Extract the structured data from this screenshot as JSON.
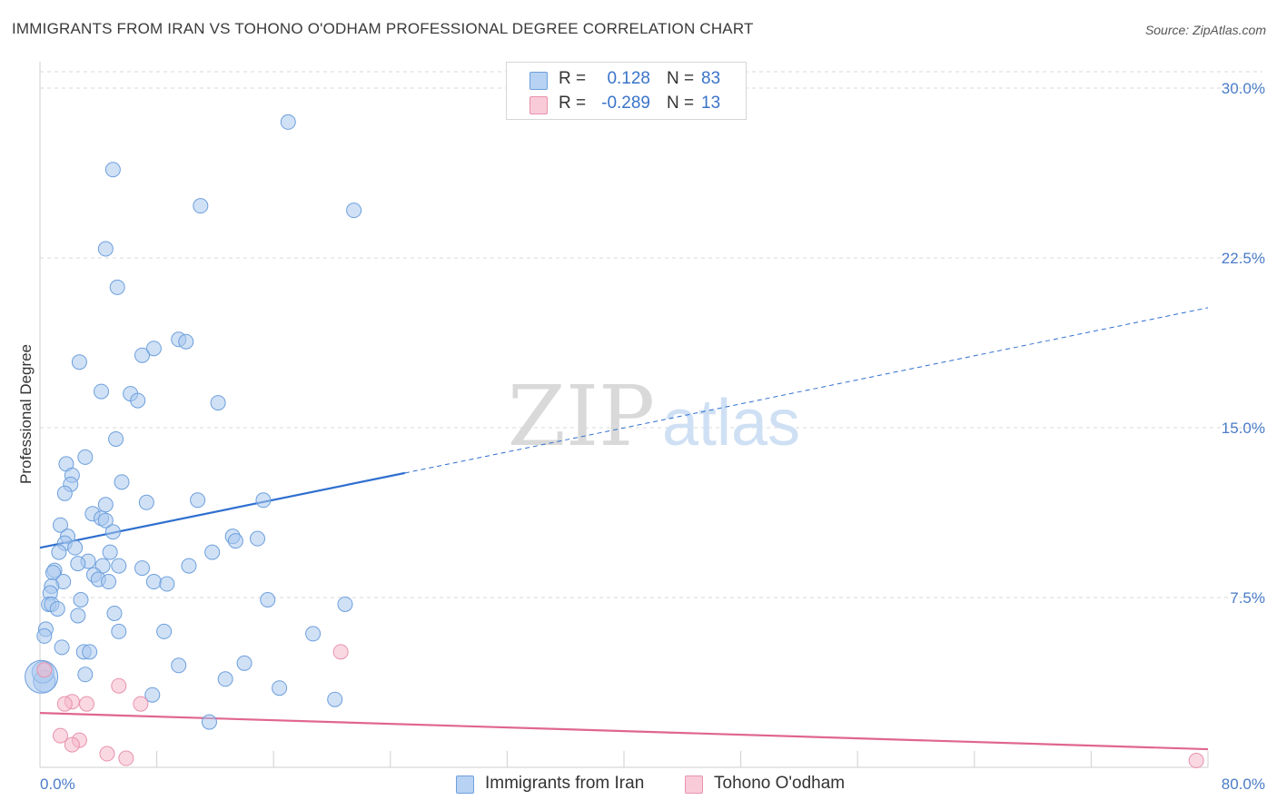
{
  "title": "IMMIGRANTS FROM IRAN VS TOHONO O'ODHAM PROFESSIONAL DEGREE CORRELATION CHART",
  "source": "Source: ZipAtlas.com",
  "watermark": {
    "zip": "ZIP",
    "atlas": "atlas"
  },
  "legend": {
    "series1": {
      "r_label": "R =",
      "r_value": "0.128",
      "n_label": "N =",
      "n_value": "83"
    },
    "series2": {
      "r_label": "R =",
      "r_value": "-0.289",
      "n_label": "N =",
      "n_value": "13"
    }
  },
  "colors": {
    "blue_fill": "#a9c8ef",
    "blue_stroke": "#6d9fdc",
    "blue_line": "#2f6fcf",
    "pink_fill": "#f5b8cb",
    "pink_stroke": "#e892ad",
    "pink_line": "#e0668f",
    "grid": "#d9d9d9",
    "tick_text": "#4a7cc7"
  },
  "chart_data": {
    "type": "scatter",
    "title": "IMMIGRANTS FROM IRAN VS TOHONO O'ODHAM PROFESSIONAL DEGREE CORRELATION CHART",
    "xlabel": "",
    "ylabel": "Professional Degree",
    "xlim": [
      0,
      80
    ],
    "ylim": [
      0,
      30
    ],
    "x_tick_labels": [
      "0.0%",
      "80.0%"
    ],
    "y_ticks": [
      7.5,
      15.0,
      22.5,
      30.0
    ],
    "y_tick_labels": [
      "7.5%",
      "15.0%",
      "22.5%",
      "30.0%"
    ],
    "series": [
      {
        "name": "Immigrants from Iran",
        "color": "#a9c8ef",
        "r": 0.128,
        "n": 83,
        "trend": {
          "x0": 0,
          "y0": 9.7,
          "x1": 25,
          "y1": 13.0,
          "dashed_to_x": 80,
          "dashed_to_y": 20.3
        },
        "points": [
          [
            17.0,
            28.5
          ],
          [
            5.0,
            26.4
          ],
          [
            11.0,
            24.8
          ],
          [
            21.5,
            24.6
          ],
          [
            4.5,
            22.9
          ],
          [
            5.3,
            21.2
          ],
          [
            9.5,
            18.9
          ],
          [
            10.0,
            18.8
          ],
          [
            7.8,
            18.5
          ],
          [
            7.0,
            18.2
          ],
          [
            2.7,
            17.9
          ],
          [
            4.2,
            16.6
          ],
          [
            6.2,
            16.5
          ],
          [
            6.7,
            16.2
          ],
          [
            12.2,
            16.1
          ],
          [
            5.2,
            14.5
          ],
          [
            3.1,
            13.7
          ],
          [
            1.8,
            13.4
          ],
          [
            2.2,
            12.9
          ],
          [
            2.1,
            12.5
          ],
          [
            5.6,
            12.6
          ],
          [
            1.7,
            12.1
          ],
          [
            10.8,
            11.8
          ],
          [
            15.3,
            11.8
          ],
          [
            7.3,
            11.7
          ],
          [
            4.5,
            11.6
          ],
          [
            3.6,
            11.2
          ],
          [
            4.2,
            11.0
          ],
          [
            4.5,
            10.9
          ],
          [
            1.4,
            10.7
          ],
          [
            5.0,
            10.4
          ],
          [
            1.9,
            10.2
          ],
          [
            13.2,
            10.2
          ],
          [
            13.4,
            10.0
          ],
          [
            14.9,
            10.1
          ],
          [
            1.7,
            9.9
          ],
          [
            2.4,
            9.7
          ],
          [
            1.3,
            9.5
          ],
          [
            4.8,
            9.5
          ],
          [
            11.8,
            9.5
          ],
          [
            3.3,
            9.1
          ],
          [
            2.6,
            9.0
          ],
          [
            4.3,
            8.9
          ],
          [
            5.4,
            8.9
          ],
          [
            10.2,
            8.9
          ],
          [
            7.0,
            8.8
          ],
          [
            1.0,
            8.7
          ],
          [
            3.7,
            8.5
          ],
          [
            0.9,
            8.6
          ],
          [
            4.0,
            8.3
          ],
          [
            1.6,
            8.2
          ],
          [
            4.7,
            8.2
          ],
          [
            7.8,
            8.2
          ],
          [
            8.7,
            8.1
          ],
          [
            0.8,
            8.0
          ],
          [
            0.7,
            7.7
          ],
          [
            2.8,
            7.4
          ],
          [
            15.6,
            7.4
          ],
          [
            0.6,
            7.2
          ],
          [
            0.8,
            7.2
          ],
          [
            20.9,
            7.2
          ],
          [
            1.2,
            7.0
          ],
          [
            5.1,
            6.8
          ],
          [
            2.6,
            6.7
          ],
          [
            0.4,
            6.1
          ],
          [
            5.4,
            6.0
          ],
          [
            8.5,
            6.0
          ],
          [
            18.7,
            5.9
          ],
          [
            0.3,
            5.8
          ],
          [
            1.5,
            5.3
          ],
          [
            3.0,
            5.1
          ],
          [
            3.4,
            5.1
          ],
          [
            14.0,
            4.6
          ],
          [
            9.5,
            4.5
          ],
          [
            3.1,
            4.1
          ],
          [
            12.7,
            3.9
          ],
          [
            16.4,
            3.5
          ],
          [
            7.7,
            3.2
          ],
          [
            20.2,
            3.0
          ],
          [
            11.6,
            2.0
          ],
          [
            0.3,
            3.8
          ],
          [
            0.2,
            4.2
          ],
          [
            0.1,
            4.0
          ]
        ]
      },
      {
        "name": "Tohono O'odham",
        "color": "#f5b8cb",
        "r": -0.289,
        "n": 13,
        "trend": {
          "x0": 0,
          "y0": 2.4,
          "x1": 80,
          "y1": 0.8
        },
        "points": [
          [
            0.3,
            4.3
          ],
          [
            20.6,
            5.1
          ],
          [
            5.4,
            3.6
          ],
          [
            2.2,
            2.9
          ],
          [
            1.7,
            2.8
          ],
          [
            3.2,
            2.8
          ],
          [
            6.9,
            2.8
          ],
          [
            1.4,
            1.4
          ],
          [
            2.7,
            1.2
          ],
          [
            2.2,
            1.0
          ],
          [
            4.6,
            0.6
          ],
          [
            5.9,
            0.4
          ],
          [
            79.2,
            0.3
          ]
        ]
      }
    ]
  },
  "bottom_legend": {
    "item1": "Immigrants from Iran",
    "item2": "Tohono O'odham"
  }
}
